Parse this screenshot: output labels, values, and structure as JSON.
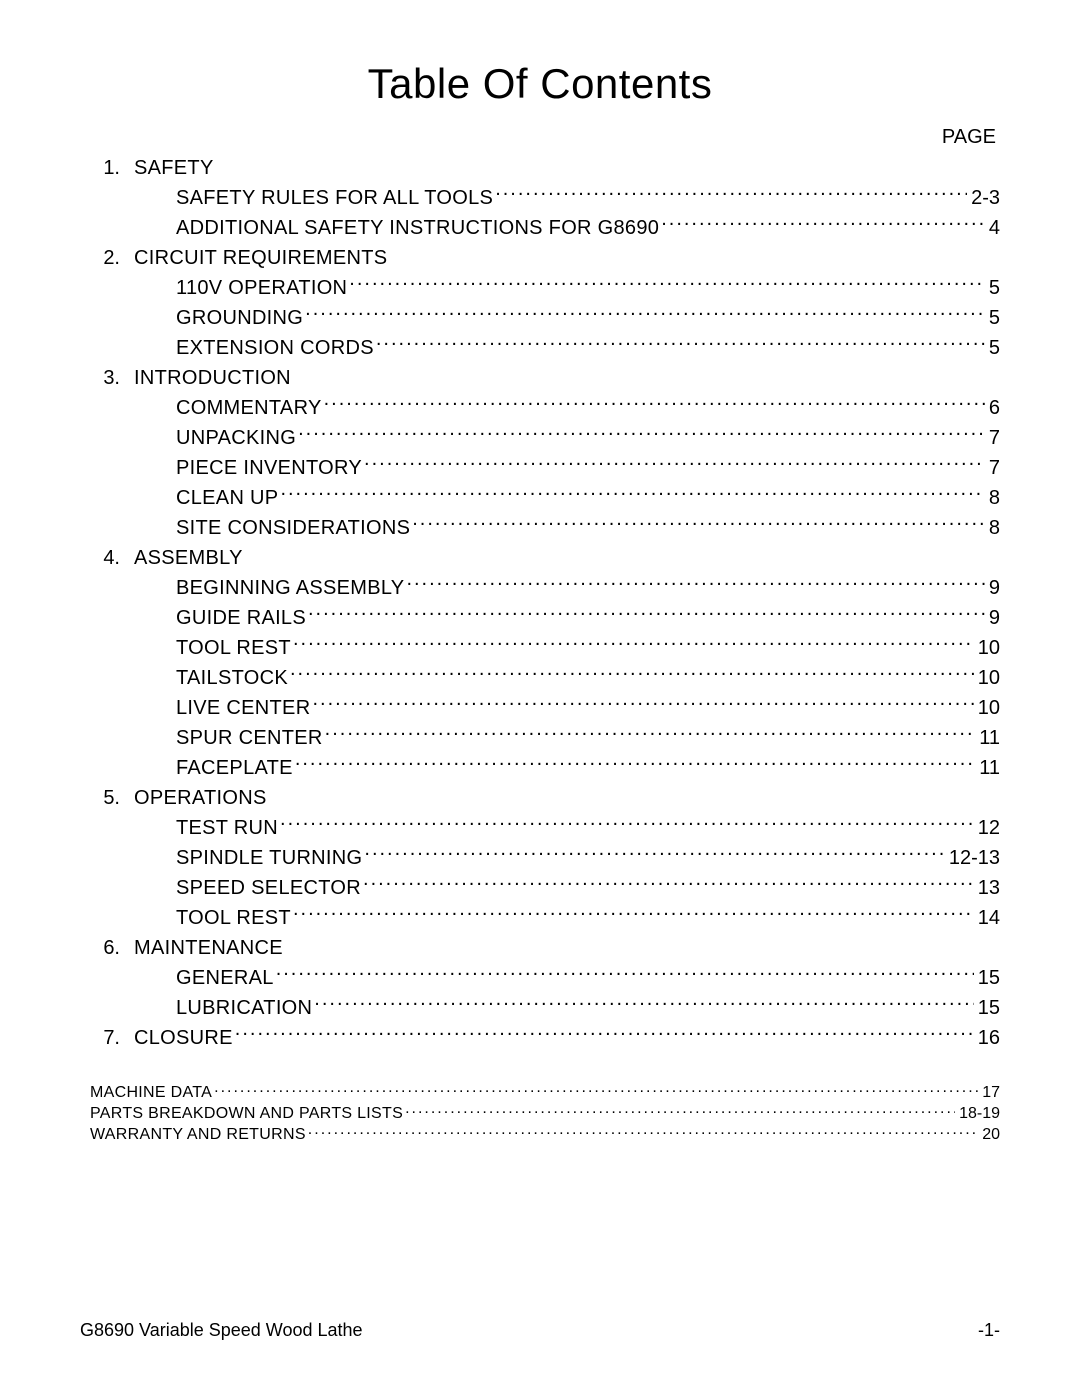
{
  "title": "Table Of Contents",
  "pageLabel": "PAGE",
  "sections": [
    {
      "num": "1.",
      "title": "SAFETY",
      "page": "",
      "items": [
        {
          "label": "SAFETY RULES FOR ALL TOOLS",
          "page": "2-3"
        },
        {
          "label": "ADDITIONAL SAFETY INSTRUCTIONS FOR G8690",
          "page": "4"
        }
      ]
    },
    {
      "num": "2.",
      "title": "CIRCUIT REQUIREMENTS",
      "page": "",
      "items": [
        {
          "label": "110V OPERATION",
          "page": "5"
        },
        {
          "label": "GROUNDING",
          "page": "5"
        },
        {
          "label": "EXTENSION CORDS",
          "page": "5"
        }
      ]
    },
    {
      "num": "3.",
      "title": "INTRODUCTION",
      "page": "",
      "items": [
        {
          "label": "COMMENTARY",
          "page": "6"
        },
        {
          "label": "UNPACKING",
          "page": "7"
        },
        {
          "label": "PIECE INVENTORY",
          "page": "7"
        },
        {
          "label": "CLEAN UP",
          "page": "8"
        },
        {
          "label": "SITE CONSIDERATIONS",
          "page": "8"
        }
      ]
    },
    {
      "num": "4.",
      "title": "ASSEMBLY",
      "page": "",
      "items": [
        {
          "label": "BEGINNING ASSEMBLY",
          "page": "9"
        },
        {
          "label": "GUIDE RAILS",
          "page": "9"
        },
        {
          "label": "TOOL REST",
          "page": "10"
        },
        {
          "label": "TAILSTOCK",
          "page": "10"
        },
        {
          "label": "LIVE CENTER",
          "page": "10"
        },
        {
          "label": "SPUR CENTER",
          "page": "11"
        },
        {
          "label": "FACEPLATE",
          "page": "11"
        }
      ]
    },
    {
      "num": "5.",
      "title": "OPERATIONS",
      "page": "",
      "items": [
        {
          "label": "TEST RUN",
          "page": "12"
        },
        {
          "label": "SPINDLE TURNING",
          "page": "12-13"
        },
        {
          "label": "SPEED SELECTOR",
          "page": "13"
        },
        {
          "label": "TOOL REST",
          "page": "14"
        }
      ]
    },
    {
      "num": "6.",
      "title": "MAINTENANCE",
      "page": "",
      "items": [
        {
          "label": "GENERAL",
          "page": "15"
        },
        {
          "label": "LUBRICATION",
          "page": "15"
        }
      ]
    },
    {
      "num": "7.",
      "title": "CLOSURE",
      "page": "16",
      "items": []
    }
  ],
  "appendix": [
    {
      "label": "MACHINE DATA",
      "page": "17"
    },
    {
      "label": "PARTS BREAKDOWN AND PARTS LISTS",
      "page": "18-19"
    },
    {
      "label": "WARRANTY AND RETURNS",
      "page": "20"
    }
  ],
  "footer": {
    "left": "G8690 Variable Speed Wood Lathe",
    "right": "-1-"
  }
}
